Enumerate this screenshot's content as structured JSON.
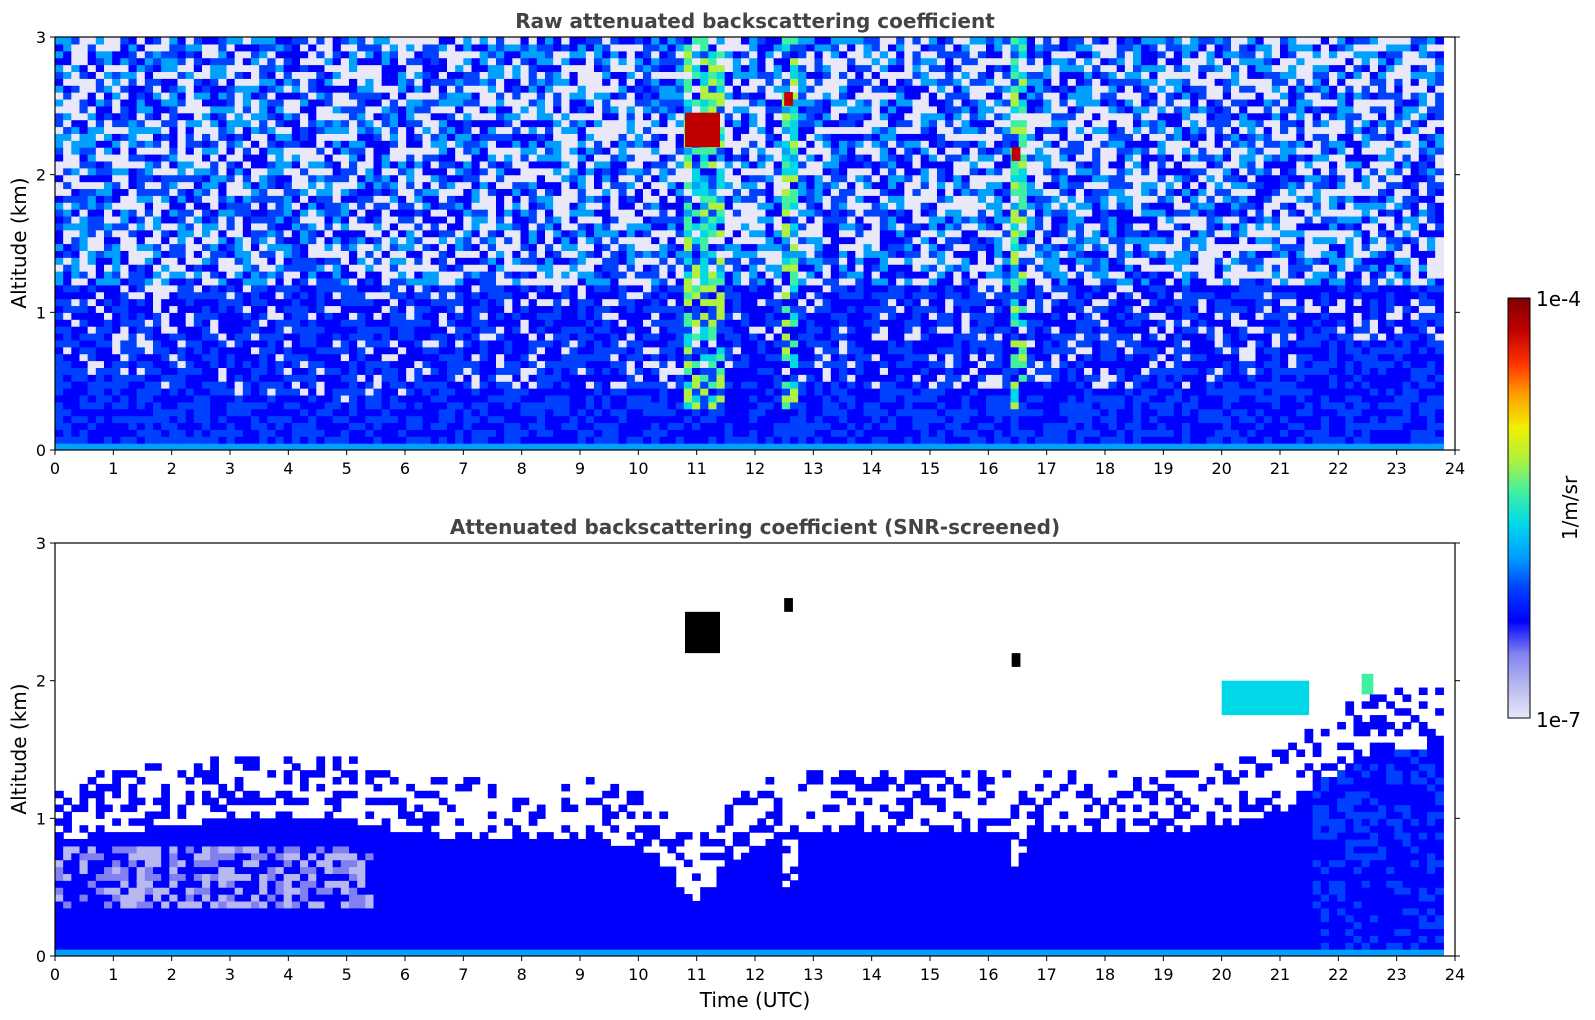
{
  "colors": {
    "colormap": [
      "#e8e8f8",
      "#b8b8f0",
      "#8080f0",
      "#0000ff",
      "#0040ff",
      "#00a0ff",
      "#00d8e8",
      "#40f0a0",
      "#b0f040",
      "#f0f000",
      "#ffa000",
      "#ff3000",
      "#c00000",
      "#800000"
    ],
    "screened_black": "#000000"
  },
  "colorbar": {
    "max_label": "1e-4",
    "min_label": "1e-7",
    "unit_label": "1/m/sr",
    "scale": "log"
  },
  "chart_data": [
    {
      "type": "heatmap",
      "title": "Raw attenuated backscattering coefficient",
      "xlabel": "",
      "ylabel": "Altitude (km)",
      "xlim": [
        0,
        24
      ],
      "ylim": [
        0,
        3
      ],
      "x_ticks": [
        "0",
        "1",
        "2",
        "3",
        "4",
        "5",
        "6",
        "7",
        "8",
        "9",
        "10",
        "11",
        "12",
        "13",
        "14",
        "15",
        "16",
        "17",
        "18",
        "19",
        "20",
        "21",
        "22",
        "23",
        "24"
      ],
      "y_ticks": [
        "0",
        "1",
        "2",
        "3"
      ],
      "data_extent_x": [
        0,
        23.8
      ],
      "clouds": [
        {
          "t_start": 10.8,
          "t_end": 11.4,
          "alt_start": 2.2,
          "alt_end": 2.45,
          "value": "1e-4"
        },
        {
          "t_start": 12.5,
          "t_end": 12.65,
          "alt_start": 2.5,
          "alt_end": 2.6,
          "value": "1e-4"
        },
        {
          "t_start": 16.4,
          "t_end": 16.55,
          "alt_start": 2.1,
          "alt_end": 2.2,
          "value": "1e-4"
        }
      ],
      "boundary_layer_top_km": [
        0.6,
        0.55,
        0.45,
        0.4,
        0.35,
        0.35,
        0.4,
        0.45,
        0.45,
        0.45,
        0.45,
        0.45,
        0.45,
        0.45,
        0.45,
        0.45,
        0.45,
        0.45,
        0.45,
        0.45,
        0.5,
        0.55,
        0.75,
        0.8
      ]
    },
    {
      "type": "heatmap",
      "title": "Attenuated backscattering coefficient (SNR-screened)",
      "xlabel": "Time (UTC)",
      "ylabel": "Altitude (km)",
      "xlim": [
        0,
        24
      ],
      "ylim": [
        0,
        3
      ],
      "x_ticks": [
        "0",
        "1",
        "2",
        "3",
        "4",
        "5",
        "6",
        "7",
        "8",
        "9",
        "10",
        "11",
        "12",
        "13",
        "14",
        "15",
        "16",
        "17",
        "18",
        "19",
        "20",
        "21",
        "22",
        "23",
        "24"
      ],
      "y_ticks": [
        "0",
        "1",
        "2",
        "3"
      ],
      "data_extent_x": [
        0,
        23.8
      ],
      "clouds": [
        {
          "t_start": 10.8,
          "t_end": 11.4,
          "alt_start": 2.2,
          "alt_end": 2.5,
          "value": "screened"
        },
        {
          "t_start": 12.5,
          "t_end": 12.65,
          "alt_start": 2.5,
          "alt_end": 2.6,
          "value": "screened"
        },
        {
          "t_start": 16.4,
          "t_end": 16.55,
          "alt_start": 2.1,
          "alt_end": 2.2,
          "value": "screened"
        },
        {
          "t_start": 20.0,
          "t_end": 21.5,
          "alt_start": 1.75,
          "alt_end": 2.0,
          "value": "1e-6"
        },
        {
          "t_start": 22.4,
          "t_end": 22.6,
          "alt_start": 1.9,
          "alt_end": 2.05,
          "value": "1e-5"
        }
      ],
      "screened_top_km": [
        0.85,
        0.9,
        0.95,
        1.0,
        1.0,
        1.0,
        0.9,
        0.85,
        0.85,
        0.85,
        0.8,
        0.45,
        0.8,
        0.9,
        0.9,
        0.9,
        0.9,
        0.9,
        0.9,
        0.9,
        0.95,
        1.05,
        1.35,
        1.5
      ],
      "notch_dips": [
        {
          "t": 11.0,
          "alt_min": 0.42,
          "width_h": 0.8
        },
        {
          "t": 12.6,
          "alt_min": 0.4,
          "width_h": 0.3
        },
        {
          "t": 16.5,
          "alt_min": 0.6,
          "width_h": 0.25
        }
      ]
    }
  ]
}
